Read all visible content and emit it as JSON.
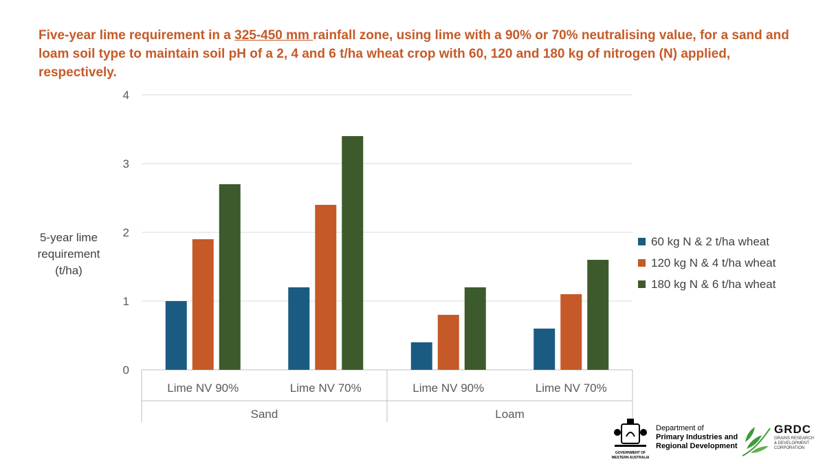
{
  "title": {
    "part1": "Five-year lime requirement in a ",
    "underlined": "325-450 mm ",
    "part2": "rainfall zone, using lime with a 90% or 70% neutralising value, for a sand and loam soil type to maintain soil pH of a 2, 4 and 6 t/ha wheat crop with 60, 120 and 180 kg of nitrogen (N) applied, respectively."
  },
  "chart_data": {
    "type": "bar",
    "title": "Five-year lime requirement in a 325-450 mm rainfall zone, using lime with a 90% or 70% neutralising value, for a sand and loam soil type to maintain soil pH of a 2, 4 and 6 t/ha wheat crop with 60, 120 and 180 kg of nitrogen (N) applied, respectively.",
    "categories": [
      "Lime NV 90%",
      "Lime NV 70%",
      "Lime NV 90%",
      "Lime NV 70%"
    ],
    "groups": [
      {
        "label": "Sand",
        "categories": [
          0,
          1
        ]
      },
      {
        "label": "Loam",
        "categories": [
          2,
          3
        ]
      }
    ],
    "series": [
      {
        "name": "60 kg N & 2 t/ha wheat",
        "color": "#1a5b82",
        "values": [
          1.0,
          1.2,
          0.4,
          0.6
        ]
      },
      {
        "name": "120 kg N & 4 t/ha wheat",
        "color": "#c55a28",
        "values": [
          1.9,
          2.4,
          0.8,
          1.1
        ]
      },
      {
        "name": "180 kg N & 6 t/ha wheat",
        "color": "#3c5a2b",
        "values": [
          2.7,
          3.4,
          1.2,
          1.6
        ]
      }
    ],
    "ylabel": [
      "5-year lime",
      "requirement",
      "(t/ha)"
    ],
    "xlabel": "",
    "ylim": [
      0,
      4
    ],
    "yticks": [
      0,
      1,
      2,
      3,
      4
    ],
    "grid": true,
    "legend": "right"
  },
  "logos": {
    "dept_line1": "Department of",
    "dept_line2": "Primary Industries and",
    "dept_line3": "Regional Development",
    "gov_line1": "GOVERNMENT OF",
    "gov_line2": "WESTERN AUSTRALIA",
    "grdc_name": "GRDC",
    "grdc_sub1": "GRAINS RESEARCH",
    "grdc_sub2": "& DEVELOPMENT",
    "grdc_sub3": "CORPORATION"
  }
}
